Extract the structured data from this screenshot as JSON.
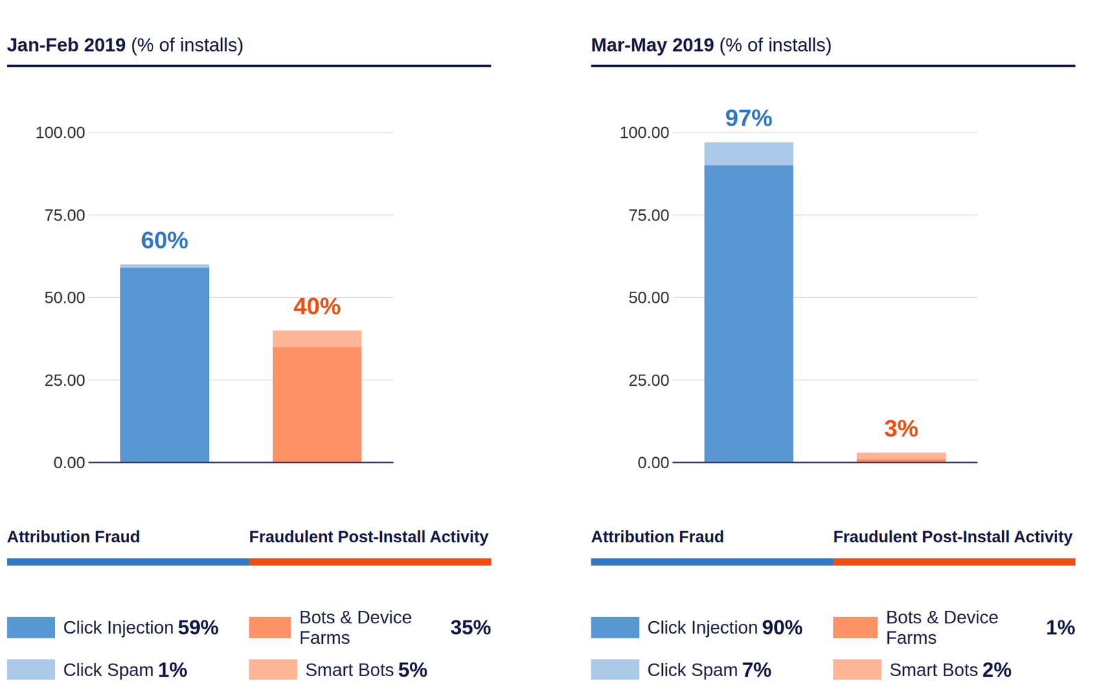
{
  "chart_data": [
    {
      "type": "bar",
      "title": "Jan-Feb 2019",
      "subtitle": "(% of installs)",
      "categories": [
        "Attribution Fraud",
        "Fraudulent Post-Install Activity"
      ],
      "series": [
        {
          "name": "Click Injection",
          "color": "#5897d3",
          "values": [
            59,
            null
          ],
          "value_labels": [
            "59%",
            null
          ]
        },
        {
          "name": "Click Spam",
          "color": "#abc9e9",
          "values": [
            1,
            null
          ],
          "value_labels": [
            "1%",
            null
          ]
        },
        {
          "name": "Bots & Device Farms",
          "color": "#ff9166",
          "values": [
            null,
            35
          ],
          "value_labels": [
            null,
            "35%"
          ]
        },
        {
          "name": "Smart Bots",
          "color": "#ffb596",
          "values": [
            null,
            5
          ],
          "value_labels": [
            null,
            "5%"
          ]
        }
      ],
      "stacked": true,
      "totals": [
        60,
        40
      ],
      "total_labels": [
        "60%",
        "40%"
      ],
      "colors": [
        "#3278c2",
        "#ee4f14"
      ],
      "ylim": [
        0,
        100
      ],
      "yticks": [
        {
          "value": 0,
          "label": "0.00"
        },
        {
          "value": 25,
          "label": "25.00"
        },
        {
          "value": 50,
          "label": "50.00"
        },
        {
          "value": 75,
          "label": "75.00"
        },
        {
          "value": 100,
          "label": "100.00"
        }
      ],
      "grid": true
    },
    {
      "type": "bar",
      "title": "Mar-May 2019",
      "subtitle": "(% of installs)",
      "categories": [
        "Attribution Fraud",
        "Fraudulent Post-Install Activity"
      ],
      "series": [
        {
          "name": "Click Injection",
          "color": "#5897d3",
          "values": [
            90,
            null
          ],
          "value_labels": [
            "90%",
            null
          ]
        },
        {
          "name": "Click Spam",
          "color": "#abc9e9",
          "values": [
            7,
            null
          ],
          "value_labels": [
            "7%",
            null
          ]
        },
        {
          "name": "Bots & Device Farms",
          "color": "#ff9166",
          "values": [
            null,
            1
          ],
          "value_labels": [
            null,
            "1%"
          ]
        },
        {
          "name": "Smart Bots",
          "color": "#ffb596",
          "values": [
            null,
            2
          ],
          "value_labels": [
            null,
            "2%"
          ]
        }
      ],
      "stacked": true,
      "totals": [
        97,
        3
      ],
      "total_labels": [
        "97%",
        "3%"
      ],
      "colors": [
        "#3278c2",
        "#ee4f14"
      ],
      "ylim": [
        0,
        100
      ],
      "yticks": [
        {
          "value": 0,
          "label": "0.00"
        },
        {
          "value": 25,
          "label": "25.00"
        },
        {
          "value": 50,
          "label": "50.00"
        },
        {
          "value": 75,
          "label": "75.00"
        },
        {
          "value": 100,
          "label": "100.00"
        }
      ],
      "grid": true
    }
  ]
}
